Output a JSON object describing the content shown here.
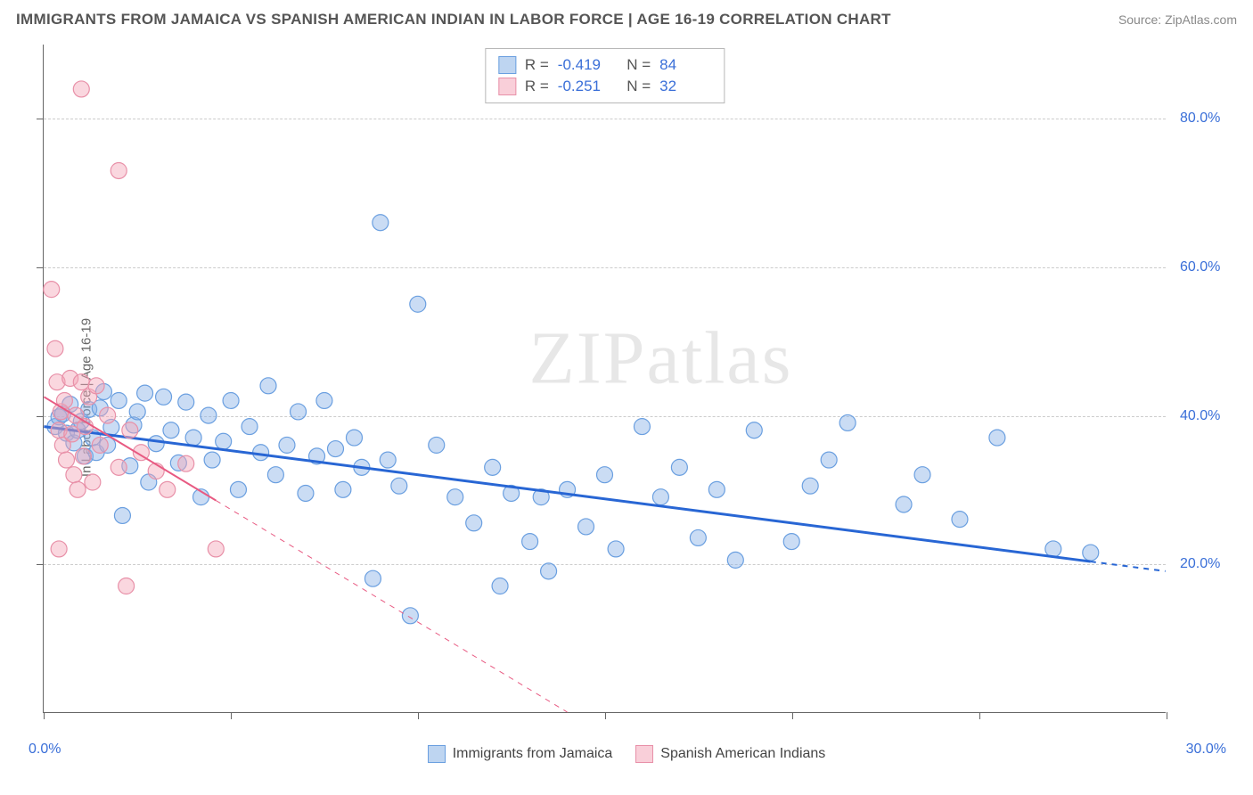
{
  "header": {
    "title": "IMMIGRANTS FROM JAMAICA VS SPANISH AMERICAN INDIAN IN LABOR FORCE | AGE 16-19 CORRELATION CHART",
    "source": "Source: ZipAtlas.com"
  },
  "watermark": {
    "part1": "ZIP",
    "part2": "atlas"
  },
  "chart": {
    "type": "scatter",
    "xlim": [
      0,
      30
    ],
    "ylim": [
      0,
      90
    ],
    "x_tick_step": 5,
    "grid_y": [
      20,
      40,
      60,
      80
    ],
    "y_tick_labels": [
      "20.0%",
      "40.0%",
      "60.0%",
      "80.0%"
    ],
    "x_axis_min_label": "0.0%",
    "x_axis_max_label": "30.0%",
    "y_axis_label": "In Labor Force | Age 16-19",
    "background_color": "#ffffff",
    "grid_color": "#cccccc",
    "axis_color": "#666666",
    "tick_label_color": "#3a6fd8",
    "marker_radius": 9,
    "series": [
      {
        "name": "Immigrants from Jamaica",
        "color_fill": "rgba(137,178,230,0.45)",
        "color_stroke": "#6a9fe0",
        "r": "-0.419",
        "n": "84",
        "trend": {
          "x1": 0,
          "y1": 38.5,
          "x2": 30,
          "y2": 19.0,
          "solid_until_x": 28.0,
          "color": "#2866d4",
          "width": 3
        },
        "points": [
          [
            0.3,
            38.5
          ],
          [
            0.4,
            39.8
          ],
          [
            0.5,
            40.2
          ],
          [
            0.6,
            37.6
          ],
          [
            0.7,
            41.5
          ],
          [
            0.8,
            36.3
          ],
          [
            0.9,
            38.0
          ],
          [
            1.0,
            39.2
          ],
          [
            1.1,
            34.5
          ],
          [
            1.2,
            40.8
          ],
          [
            1.3,
            37.0
          ],
          [
            1.4,
            35.0
          ],
          [
            1.5,
            41.0
          ],
          [
            1.6,
            43.2
          ],
          [
            1.7,
            36.0
          ],
          [
            1.8,
            38.4
          ],
          [
            2.0,
            42.0
          ],
          [
            2.1,
            26.5
          ],
          [
            2.3,
            33.2
          ],
          [
            2.4,
            38.7
          ],
          [
            2.5,
            40.5
          ],
          [
            2.7,
            43.0
          ],
          [
            2.8,
            31.0
          ],
          [
            3.0,
            36.2
          ],
          [
            3.2,
            42.5
          ],
          [
            3.4,
            38.0
          ],
          [
            3.6,
            33.6
          ],
          [
            3.8,
            41.8
          ],
          [
            4.0,
            37.0
          ],
          [
            4.2,
            29.0
          ],
          [
            4.4,
            40.0
          ],
          [
            4.5,
            34.0
          ],
          [
            4.8,
            36.5
          ],
          [
            5.0,
            42.0
          ],
          [
            5.2,
            30.0
          ],
          [
            5.5,
            38.5
          ],
          [
            5.8,
            35.0
          ],
          [
            6.0,
            44.0
          ],
          [
            6.2,
            32.0
          ],
          [
            6.5,
            36.0
          ],
          [
            6.8,
            40.5
          ],
          [
            7.0,
            29.5
          ],
          [
            7.3,
            34.5
          ],
          [
            7.5,
            42.0
          ],
          [
            7.8,
            35.5
          ],
          [
            8.0,
            30.0
          ],
          [
            8.3,
            37.0
          ],
          [
            8.5,
            33.0
          ],
          [
            8.8,
            18.0
          ],
          [
            9.0,
            66.0
          ],
          [
            9.2,
            34.0
          ],
          [
            9.5,
            30.5
          ],
          [
            9.8,
            13.0
          ],
          [
            10.0,
            55.0
          ],
          [
            10.5,
            36.0
          ],
          [
            11.0,
            29.0
          ],
          [
            11.5,
            25.5
          ],
          [
            12.0,
            33.0
          ],
          [
            12.2,
            17.0
          ],
          [
            12.5,
            29.5
          ],
          [
            13.0,
            23.0
          ],
          [
            13.3,
            29.0
          ],
          [
            13.5,
            19.0
          ],
          [
            14.0,
            30.0
          ],
          [
            14.5,
            25.0
          ],
          [
            15.0,
            32.0
          ],
          [
            15.3,
            22.0
          ],
          [
            16.0,
            38.5
          ],
          [
            16.5,
            29.0
          ],
          [
            17.0,
            33.0
          ],
          [
            17.5,
            23.5
          ],
          [
            18.0,
            30.0
          ],
          [
            18.5,
            20.5
          ],
          [
            19.0,
            38.0
          ],
          [
            20.0,
            23.0
          ],
          [
            20.5,
            30.5
          ],
          [
            21.0,
            34.0
          ],
          [
            21.5,
            39.0
          ],
          [
            23.0,
            28.0
          ],
          [
            23.5,
            32.0
          ],
          [
            24.5,
            26.0
          ],
          [
            25.5,
            37.0
          ],
          [
            27.0,
            22.0
          ],
          [
            28.0,
            21.5
          ]
        ]
      },
      {
        "name": "Spanish American Indians",
        "color_fill": "rgba(244,167,185,0.45)",
        "color_stroke": "#e890a8",
        "r": "-0.251",
        "n": "32",
        "trend": {
          "x1": 0,
          "y1": 42.5,
          "x2": 14.0,
          "y2": 0,
          "solid_until_x": 4.6,
          "color": "#e85a82",
          "width": 2
        },
        "points": [
          [
            0.2,
            57.0
          ],
          [
            0.3,
            49.0
          ],
          [
            0.35,
            44.5
          ],
          [
            0.4,
            38.0
          ],
          [
            0.45,
            40.5
          ],
          [
            0.5,
            36.0
          ],
          [
            0.55,
            42.0
          ],
          [
            0.6,
            34.0
          ],
          [
            0.7,
            45.0
          ],
          [
            0.75,
            37.5
          ],
          [
            0.8,
            32.0
          ],
          [
            0.85,
            40.0
          ],
          [
            0.9,
            30.0
          ],
          [
            1.0,
            44.5
          ],
          [
            1.05,
            34.5
          ],
          [
            1.1,
            38.5
          ],
          [
            1.2,
            42.5
          ],
          [
            1.3,
            31.0
          ],
          [
            1.4,
            44.0
          ],
          [
            1.0,
            84.0
          ],
          [
            0.4,
            22.0
          ],
          [
            1.5,
            36.0
          ],
          [
            1.7,
            40.0
          ],
          [
            2.0,
            33.0
          ],
          [
            2.0,
            73.0
          ],
          [
            2.3,
            38.0
          ],
          [
            2.2,
            17.0
          ],
          [
            2.6,
            35.0
          ],
          [
            3.0,
            32.5
          ],
          [
            3.3,
            30.0
          ],
          [
            3.8,
            33.5
          ],
          [
            4.6,
            22.0
          ]
        ]
      }
    ]
  },
  "bottom_legend": [
    {
      "label": "Immigrants from Jamaica",
      "fill": "rgba(137,178,230,0.55)",
      "stroke": "#6a9fe0"
    },
    {
      "label": "Spanish American Indians",
      "fill": "rgba(244,167,185,0.55)",
      "stroke": "#e890a8"
    }
  ]
}
